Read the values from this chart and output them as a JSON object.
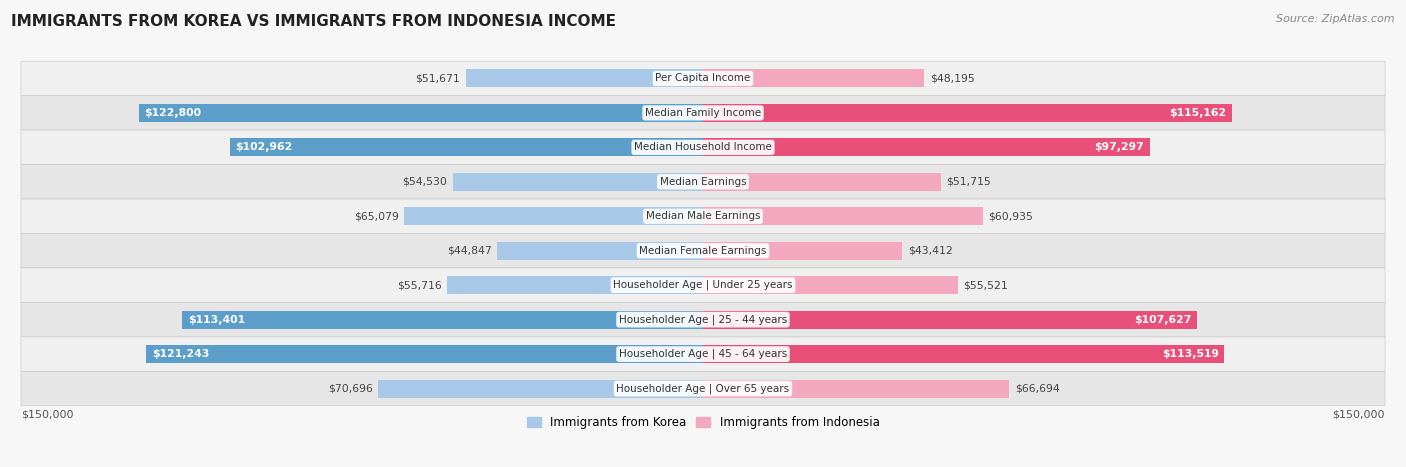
{
  "title": "IMMIGRANTS FROM KOREA VS IMMIGRANTS FROM INDONESIA INCOME",
  "source": "Source: ZipAtlas.com",
  "categories": [
    "Per Capita Income",
    "Median Family Income",
    "Median Household Income",
    "Median Earnings",
    "Median Male Earnings",
    "Median Female Earnings",
    "Householder Age | Under 25 years",
    "Householder Age | 25 - 44 years",
    "Householder Age | 45 - 64 years",
    "Householder Age | Over 65 years"
  ],
  "korea_values": [
    51671,
    122800,
    102962,
    54530,
    65079,
    44847,
    55716,
    113401,
    121243,
    70696
  ],
  "indonesia_values": [
    48195,
    115162,
    97297,
    51715,
    60935,
    43412,
    55521,
    107627,
    113519,
    66694
  ],
  "korea_labels": [
    "$51,671",
    "$122,800",
    "$102,962",
    "$54,530",
    "$65,079",
    "$44,847",
    "$55,716",
    "$113,401",
    "$121,243",
    "$70,696"
  ],
  "indonesia_labels": [
    "$48,195",
    "$115,162",
    "$97,297",
    "$51,715",
    "$60,935",
    "$43,412",
    "$55,521",
    "$107,627",
    "$113,519",
    "$66,694"
  ],
  "korea_color_light": "#A8C8E8",
  "korea_color_dark": "#5B9EC9",
  "indonesia_color_light": "#F4A8C0",
  "indonesia_color_dark": "#E8507A",
  "label_inside_threshold": 80000,
  "max_value": 150000,
  "legend_korea": "Immigrants from Korea",
  "legend_indonesia": "Immigrants from Indonesia",
  "bg_color": "#f7f7f7",
  "row_bg_color": "#ffffff",
  "row_alt_bg_color": "#eeeeee"
}
